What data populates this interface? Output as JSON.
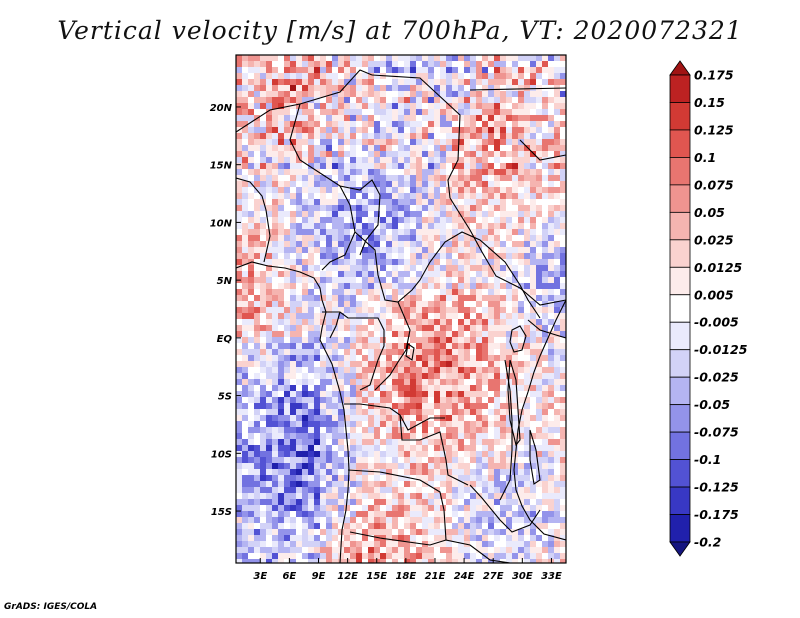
{
  "title": "Vertical velocity [m/s] at 700hPa, VT: 2020072321",
  "credit": "GrADS: IGES/COLA",
  "lat_labels": [
    "20N",
    "15N",
    "10N",
    "5N",
    "EQ",
    "5S",
    "10S",
    "15S"
  ],
  "lon_labels": [
    "3E",
    "6E",
    "9E",
    "12E",
    "15E",
    "18E",
    "21E",
    "24E",
    "27E",
    "30E",
    "33E"
  ],
  "chart_data": {
    "type": "heatmap",
    "title": "Vertical velocity [m/s] at 700hPa, VT: 2020072321",
    "lat_range": [
      -19.5,
      24.5
    ],
    "lon_range": [
      0.5,
      34.5
    ],
    "colorbar": {
      "levels": [
        "0.175",
        "0.15",
        "0.125",
        "0.1",
        "0.075",
        "0.05",
        "0.025",
        "0.0125",
        "0.005",
        "-0.005",
        "-0.0125",
        "-0.025",
        "-0.05",
        "-0.075",
        "-0.1",
        "-0.125",
        "-0.175",
        "-0.2"
      ],
      "colors": [
        "#a11414",
        "#bd2222",
        "#d23a34",
        "#e05650",
        "#e87570",
        "#ef9490",
        "#f5b4b0",
        "#fad2cf",
        "#fdeceb",
        "#ffffff",
        "#eaeafc",
        "#d2d2f7",
        "#b4b4f2",
        "#9393ea",
        "#7272e0",
        "#5252d4",
        "#3838c4",
        "#2020ac",
        "#15157f"
      ]
    }
  }
}
